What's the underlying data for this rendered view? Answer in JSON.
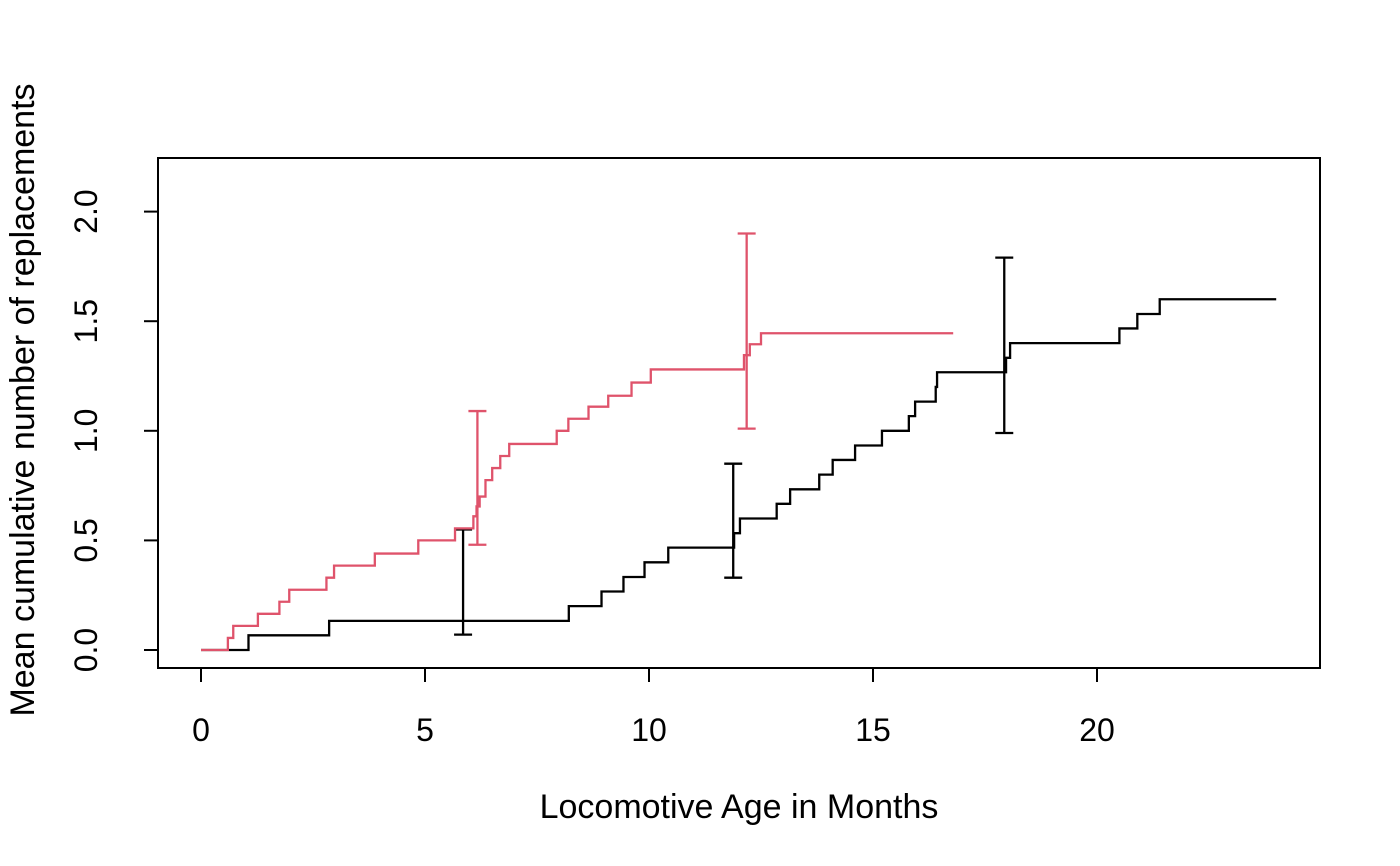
{
  "chart_data": {
    "type": "line",
    "subtype": "step-function-mcf",
    "title": "",
    "xlabel": "Locomotive Age in Months",
    "ylabel": "Mean cumulative number of replacements",
    "x_ticks": [
      "0",
      "5",
      "10",
      "15",
      "20"
    ],
    "x_tick_values": [
      0,
      5,
      10,
      15,
      20
    ],
    "y_ticks": [
      "0.0",
      "0.5",
      "1.0",
      "1.5",
      "2.0"
    ],
    "y_tick_values": [
      0,
      0.5,
      1.0,
      1.5,
      2.0
    ],
    "xlim": [
      -0.96,
      24.98
    ],
    "ylim": [
      -0.08,
      2.26
    ],
    "grid": false,
    "legend": "none",
    "frame": "full-box",
    "colors": {
      "series_black": "#000000",
      "series_red": "#DF536B",
      "background": "#FFFFFF",
      "text": "#000000"
    },
    "series": [
      {
        "name": "black",
        "color": "#000000",
        "end_x": 24.0,
        "steps": [
          [
            0,
            0
          ],
          [
            1.06,
            0.067
          ],
          [
            2.86,
            0.133
          ],
          [
            8.21,
            0.2
          ],
          [
            8.94,
            0.267
          ],
          [
            9.43,
            0.333
          ],
          [
            9.9,
            0.4
          ],
          [
            10.43,
            0.467
          ],
          [
            11.9,
            0.533
          ],
          [
            12.03,
            0.6
          ],
          [
            12.85,
            0.667
          ],
          [
            13.15,
            0.733
          ],
          [
            13.8,
            0.8
          ],
          [
            14.1,
            0.867
          ],
          [
            14.6,
            0.933
          ],
          [
            15.2,
            1.0
          ],
          [
            15.8,
            1.067
          ],
          [
            15.94,
            1.133
          ],
          [
            16.4,
            1.2
          ],
          [
            16.43,
            1.267
          ],
          [
            17.97,
            1.333
          ],
          [
            18.06,
            1.4
          ],
          [
            20.5,
            1.467
          ],
          [
            20.9,
            1.533
          ],
          [
            21.4,
            1.6
          ]
        ],
        "error_bars": [
          {
            "x": 5.85,
            "low": 0.07,
            "high": 0.55
          },
          {
            "x": 11.88,
            "low": 0.33,
            "high": 0.85
          },
          {
            "x": 17.93,
            "low": 0.99,
            "high": 1.79
          }
        ]
      },
      {
        "name": "red",
        "color": "#DF536B",
        "end_x": 16.79,
        "steps": [
          [
            0,
            0
          ],
          [
            0.6,
            0.055
          ],
          [
            0.72,
            0.11
          ],
          [
            1.27,
            0.165
          ],
          [
            1.75,
            0.22
          ],
          [
            1.97,
            0.275
          ],
          [
            2.8,
            0.33
          ],
          [
            2.97,
            0.385
          ],
          [
            3.88,
            0.44
          ],
          [
            4.85,
            0.5
          ],
          [
            5.67,
            0.555
          ],
          [
            6.08,
            0.61
          ],
          [
            6.15,
            0.655
          ],
          [
            6.22,
            0.7
          ],
          [
            6.35,
            0.775
          ],
          [
            6.5,
            0.83
          ],
          [
            6.68,
            0.885
          ],
          [
            6.88,
            0.94
          ],
          [
            7.94,
            1.0
          ],
          [
            8.2,
            1.055
          ],
          [
            8.65,
            1.11
          ],
          [
            9.09,
            1.16
          ],
          [
            9.61,
            1.22
          ],
          [
            10.04,
            1.28
          ],
          [
            12.12,
            1.345
          ],
          [
            12.25,
            1.395
          ],
          [
            12.5,
            1.445
          ]
        ],
        "error_bars": [
          {
            "x": 6.17,
            "low": 0.48,
            "high": 1.09
          },
          {
            "x": 12.18,
            "low": 1.01,
            "high": 1.9
          }
        ]
      }
    ]
  }
}
